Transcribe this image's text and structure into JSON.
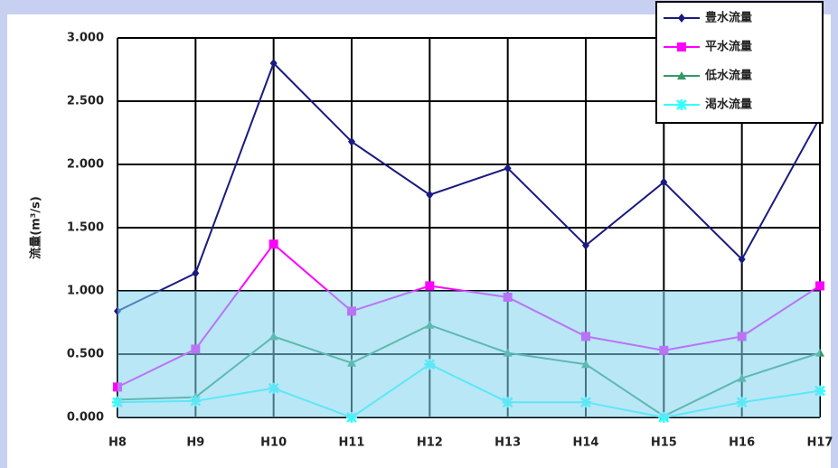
{
  "chart_data": {
    "type": "line",
    "ylabel": "流量(m³/s)",
    "categories": [
      "H8",
      "H9",
      "H10",
      "H11",
      "H12",
      "H13",
      "H14",
      "H15",
      "H16",
      "H17"
    ],
    "series": [
      {
        "name": "豊水流量",
        "color": "#1a1a80",
        "marker": "diamond",
        "values": [
          0.84,
          1.14,
          2.8,
          2.18,
          1.76,
          1.97,
          1.36,
          1.86,
          1.25,
          2.37
        ]
      },
      {
        "name": "平水流量",
        "color": "#ff00ff",
        "marker": "square",
        "values": [
          0.24,
          0.54,
          1.37,
          0.84,
          1.04,
          0.95,
          0.64,
          0.53,
          0.64,
          1.04
        ]
      },
      {
        "name": "低水流量",
        "color": "#339966",
        "marker": "triangle",
        "values": [
          0.14,
          0.16,
          0.64,
          0.43,
          0.73,
          0.51,
          0.42,
          0.01,
          0.31,
          0.51
        ]
      },
      {
        "name": "渇水流量",
        "color": "#33ffff",
        "marker": "asterisk",
        "values": [
          0.12,
          0.13,
          0.23,
          0.0,
          0.42,
          0.12,
          0.12,
          0.0,
          0.12,
          0.21
        ]
      }
    ],
    "ylim": [
      0,
      3
    ],
    "yticks": [
      {
        "value": 0,
        "label": "0.000"
      },
      {
        "value": 0.5,
        "label": "0.500"
      },
      {
        "value": 1,
        "label": "1.000"
      },
      {
        "value": 1.5,
        "label": "1.500"
      },
      {
        "value": 2,
        "label": "2.000"
      },
      {
        "value": 2.5,
        "label": "2.500"
      },
      {
        "value": 3,
        "label": "3.000"
      }
    ],
    "shaded_range": [
      0,
      1
    ],
    "shade_color": "#7fd4ef",
    "grid": true,
    "legend": "top-right"
  }
}
